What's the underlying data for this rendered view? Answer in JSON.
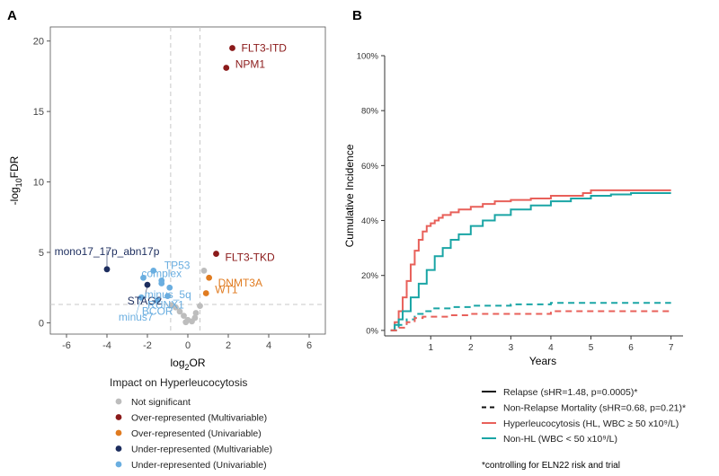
{
  "panel_a_label": "A",
  "panel_b_label": "B",
  "chart_data": [
    {
      "type": "scatter",
      "panel": "A",
      "xlabel": "log2OR",
      "ylabel": "-log10FDR",
      "xlim": [
        -6.8,
        6.8
      ],
      "ylim": [
        -0.8,
        21
      ],
      "x_ticks": [
        -6,
        -4,
        -2,
        0,
        2,
        4,
        6
      ],
      "y_ticks": [
        0,
        5,
        10,
        15,
        20
      ],
      "grid": false,
      "reference_lines": {
        "x": [
          -0.85,
          0.6
        ],
        "y": [
          1.3
        ]
      },
      "legend": {
        "title": "Impact on Hyperleucocytosis",
        "position": "bottom",
        "entries": [
          {
            "label": "Not significant",
            "color": "#bdbdbd"
          },
          {
            "label": "Over-represented (Multivariable)",
            "color": "#8b1a1a"
          },
          {
            "label": "Over-represented (Univariable)",
            "color": "#e07b20"
          },
          {
            "label": "Under-represented (Multivariable)",
            "color": "#1c2d5e"
          },
          {
            "label": "Under-represented (Univariable)",
            "color": "#6aaee0"
          }
        ]
      },
      "labeled_points": [
        {
          "label": "FLT3-ITD",
          "x": 2.2,
          "y": 19.5,
          "group": "Over-represented (Multivariable)"
        },
        {
          "label": "NPM1",
          "x": 1.9,
          "y": 18.1,
          "group": "Over-represented (Multivariable)"
        },
        {
          "label": "FLT3-TKD",
          "x": 1.4,
          "y": 4.9,
          "group": "Over-represented (Multivariable)"
        },
        {
          "label": "DNMT3A",
          "x": 1.05,
          "y": 3.2,
          "group": "Over-represented (Univariable)"
        },
        {
          "label": "WT1",
          "x": 0.9,
          "y": 2.1,
          "group": "Over-represented (Univariable)"
        },
        {
          "label": "mono17_17p_abn17p",
          "x": -4.0,
          "y": 3.8,
          "group": "Under-represented (Multivariable)"
        },
        {
          "label": "STAG2",
          "x": -2.0,
          "y": 2.7,
          "group": "Under-represented (Multivariable)"
        },
        {
          "label": "TP53",
          "x": -1.7,
          "y": 3.7,
          "group": "Under-represented (Univariable)"
        },
        {
          "label": "complex",
          "x": -1.3,
          "y": 3.0,
          "group": "Under-represented (Univariable)"
        },
        {
          "label": "minus_5q",
          "x": -0.9,
          "y": 2.5,
          "group": "Under-represented (Univariable)"
        },
        {
          "label": "RUNX1",
          "x": -1.0,
          "y": 1.9,
          "group": "Under-represented (Univariable)"
        },
        {
          "label": "BCOR",
          "x": -1.5,
          "y": 1.6,
          "group": "Under-represented (Univariable)"
        },
        {
          "label": "minus7",
          "x": -2.3,
          "y": 1.8,
          "group": "Under-represented (Univariable)"
        }
      ],
      "unlabeled_points": [
        {
          "x": -2.2,
          "y": 3.2,
          "group": "Under-represented (Univariable)"
        },
        {
          "x": -1.3,
          "y": 2.8,
          "group": "Under-represented (Univariable)"
        },
        {
          "x": -0.6,
          "y": 1.1,
          "group": "Not significant"
        },
        {
          "x": -0.4,
          "y": 0.8,
          "group": "Not significant"
        },
        {
          "x": -0.2,
          "y": 0.5,
          "group": "Not significant"
        },
        {
          "x": 0.0,
          "y": 0.2,
          "group": "Not significant"
        },
        {
          "x": 0.2,
          "y": 0.1,
          "group": "Not significant"
        },
        {
          "x": -0.1,
          "y": 0.05,
          "group": "Not significant"
        },
        {
          "x": 0.4,
          "y": 0.7,
          "group": "Not significant"
        },
        {
          "x": 0.6,
          "y": 1.2,
          "group": "Not significant"
        },
        {
          "x": 0.35,
          "y": 0.35,
          "group": "Not significant"
        },
        {
          "x": -0.8,
          "y": 1.25,
          "group": "Not significant"
        },
        {
          "x": 0.8,
          "y": 3.7,
          "group": "Not significant"
        }
      ]
    },
    {
      "type": "line",
      "panel": "B",
      "xlabel": "Years",
      "ylabel": "Cumulative Incidence",
      "xlim": [
        -0.15,
        7.3
      ],
      "ylim": [
        -0.02,
        1.0
      ],
      "x_ticks": [
        1,
        2,
        3,
        4,
        5,
        6,
        7
      ],
      "y_ticks": [
        0,
        0.2,
        0.4,
        0.6,
        0.8,
        1.0
      ],
      "y_tick_labels": [
        "0%",
        "20%",
        "40%",
        "60%",
        "80%",
        "100%"
      ],
      "grid": false,
      "series": [
        {
          "name": "Hyperleucocytosis (HL, WBC ≥ 50 x10⁹/L) — Relapse",
          "color": "#e8605a",
          "dash": "solid",
          "x": [
            0,
            0.1,
            0.2,
            0.3,
            0.4,
            0.5,
            0.6,
            0.7,
            0.8,
            0.9,
            1.0,
            1.1,
            1.2,
            1.3,
            1.5,
            1.7,
            2.0,
            2.3,
            2.6,
            3.0,
            3.5,
            4.0,
            4.5,
            4.8,
            5.0,
            6.0,
            7.0
          ],
          "y": [
            0,
            0.03,
            0.07,
            0.12,
            0.18,
            0.24,
            0.29,
            0.33,
            0.36,
            0.38,
            0.39,
            0.4,
            0.41,
            0.42,
            0.43,
            0.44,
            0.45,
            0.46,
            0.47,
            0.475,
            0.48,
            0.49,
            0.49,
            0.5,
            0.51,
            0.51,
            0.51
          ]
        },
        {
          "name": "Non-HL (WBC < 50 x10⁹/L) — Relapse",
          "color": "#1aa5a5",
          "dash": "solid",
          "x": [
            0,
            0.1,
            0.2,
            0.3,
            0.5,
            0.7,
            0.9,
            1.1,
            1.3,
            1.5,
            1.7,
            2.0,
            2.3,
            2.6,
            3.0,
            3.5,
            4.0,
            4.5,
            5.0,
            5.5,
            6.0,
            6.5,
            7.0
          ],
          "y": [
            0,
            0.02,
            0.04,
            0.07,
            0.12,
            0.17,
            0.22,
            0.27,
            0.3,
            0.33,
            0.35,
            0.38,
            0.4,
            0.42,
            0.44,
            0.455,
            0.47,
            0.48,
            0.49,
            0.495,
            0.5,
            0.5,
            0.5
          ]
        },
        {
          "name": "Non-HL (WBC < 50 x10⁹/L) — Non-Relapse Mortality",
          "color": "#1aa5a5",
          "dash": "dashed",
          "x": [
            0,
            0.2,
            0.4,
            0.6,
            0.8,
            1.0,
            1.5,
            2.0,
            3.0,
            4.0,
            5.0,
            6.0,
            7.0
          ],
          "y": [
            0,
            0.02,
            0.04,
            0.06,
            0.07,
            0.08,
            0.085,
            0.09,
            0.095,
            0.1,
            0.1,
            0.1,
            0.1
          ]
        },
        {
          "name": "Hyperleucocytosis (HL, WBC ≥ 50 x10⁹/L) — Non-Relapse Mortality",
          "color": "#e8605a",
          "dash": "dashed",
          "x": [
            0,
            0.2,
            0.4,
            0.6,
            0.8,
            1.0,
            1.5,
            2.0,
            3.0,
            4.0,
            5.0,
            6.0,
            7.0
          ],
          "y": [
            0,
            0.01,
            0.03,
            0.045,
            0.05,
            0.05,
            0.055,
            0.06,
            0.06,
            0.07,
            0.07,
            0.07,
            0.07
          ]
        }
      ],
      "legend": {
        "position": "bottom",
        "linetype_entries": [
          {
            "label": "Relapse (sHR=1.48, p=0.0005)*",
            "dash": "solid"
          },
          {
            "label": "Non-Relapse Mortality (sHR=0.68, p=0.21)*",
            "dash": "dashed"
          }
        ],
        "color_entries": [
          {
            "label": "Hyperleucocytosis (HL, WBC ≥ 50 x10⁹/L)",
            "color": "#e8605a"
          },
          {
            "label": "Non-HL (WBC < 50 x10⁹/L)",
            "color": "#1aa5a5"
          }
        ]
      },
      "footnote": "*controlling for ELN22 risk and trial"
    }
  ]
}
